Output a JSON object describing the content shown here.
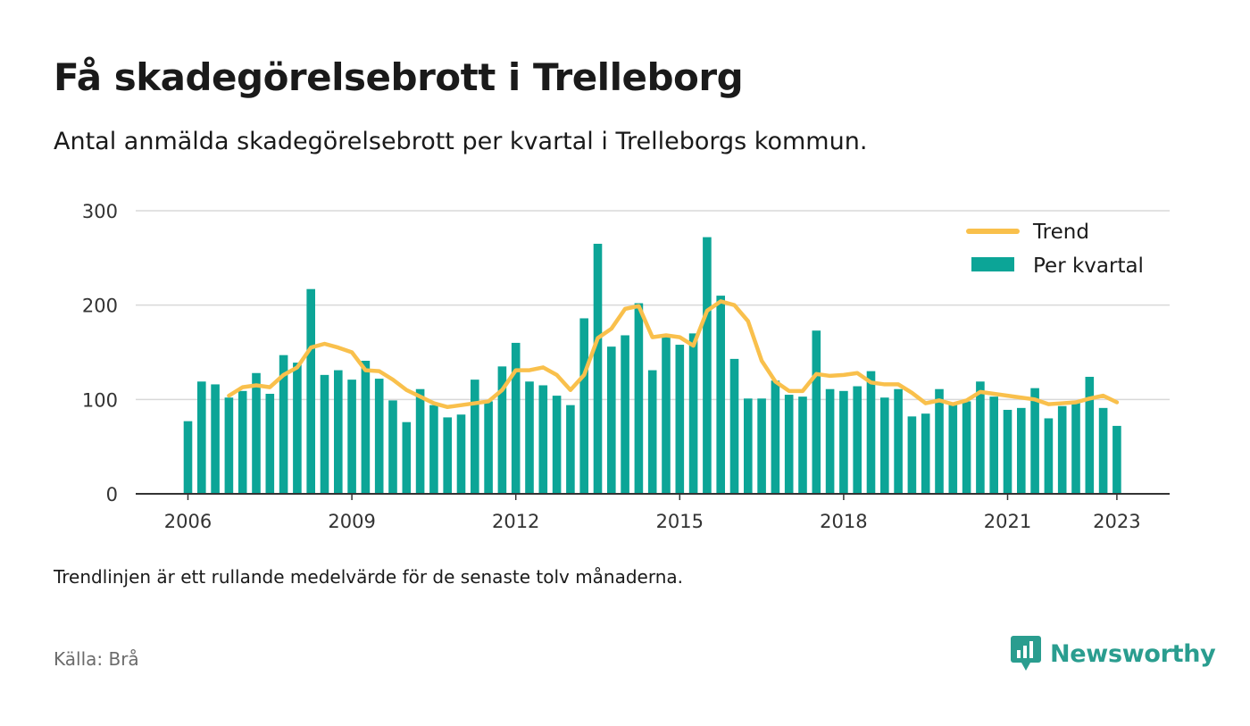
{
  "header": {
    "title": "Få skadegörelsebrott i Trelleborg",
    "subtitle": "Antal anmälda skadegörelsebrott per kvartal i Trelleborgs kommun."
  },
  "footer": {
    "note": "Trendlinjen är ett rullande medelvärde för de senaste tolv månaderna.",
    "source": "Källa: Brå",
    "brand": "Newsworthy"
  },
  "colors": {
    "bar": "#0ca597",
    "trend": "#f9c04c",
    "grid": "#d9d9d9",
    "axis": "#333333",
    "brand": "#2a9d8f"
  },
  "chart_data": {
    "type": "bar",
    "ylim": [
      0,
      300
    ],
    "yticks": [
      0,
      100,
      200,
      300
    ],
    "xticks": [
      "2006",
      "2009",
      "2012",
      "2015",
      "2018",
      "2021",
      "2023"
    ],
    "grid": true,
    "legend_position": "top-right",
    "legend": [
      "Trend",
      "Per kvartal"
    ],
    "series": [
      {
        "name": "Per kvartal",
        "type": "bar",
        "start": "2006 Q1",
        "values": [
          77,
          119,
          116,
          102,
          109,
          128,
          106,
          147,
          139,
          217,
          126,
          131,
          121,
          141,
          122,
          99,
          76,
          111,
          94,
          81,
          84,
          121,
          98,
          135,
          160,
          119,
          115,
          104,
          94,
          186,
          265,
          156,
          168,
          202,
          131,
          169,
          158,
          170,
          272,
          210,
          143,
          101,
          101,
          120,
          105,
          103,
          173,
          111,
          109,
          114,
          130,
          102,
          111,
          82,
          85,
          111,
          95,
          98,
          119,
          103,
          89,
          91,
          112,
          80,
          93,
          97,
          124,
          91,
          72
        ]
      },
      {
        "name": "Trend",
        "type": "line",
        "start": "2006 Q4",
        "values": [
          104,
          113,
          115,
          113,
          126,
          134,
          155,
          159,
          155,
          150,
          131,
          130,
          121,
          110,
          103,
          96,
          92,
          94,
          96,
          98,
          110,
          131,
          131,
          134,
          126,
          110,
          126,
          165,
          175,
          196,
          199,
          166,
          168,
          166,
          157,
          194,
          204,
          200,
          183,
          141,
          119,
          109,
          109,
          127,
          125,
          126,
          128,
          118,
          116,
          116,
          107,
          96,
          99,
          95,
          99,
          108,
          106,
          104,
          102,
          100,
          95,
          96,
          97,
          101,
          104,
          97
        ]
      }
    ]
  }
}
